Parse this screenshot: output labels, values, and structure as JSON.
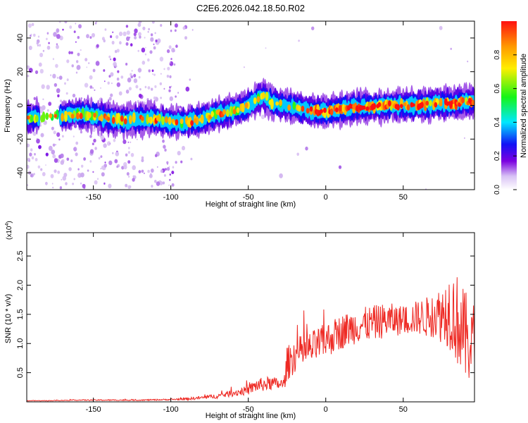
{
  "title": "C2E6.2026.042.18.50.R02",
  "colors": {
    "snr_line": "#ee2a24",
    "frame": "#000000",
    "background": "#ffffff"
  },
  "chart_data": [
    {
      "type": "heatmap",
      "xlabel": "Height of straight line (km)",
      "ylabel": "Frequency (Hz)",
      "xlim": [
        -193,
        96
      ],
      "ylim": [
        -50,
        50
      ],
      "xticks": [
        -150,
        -100,
        -50,
        0,
        50
      ],
      "xtick_labels": [
        "-150",
        "-100",
        "-50",
        "0",
        "50"
      ],
      "yticks": [
        -40,
        -20,
        0,
        20,
        40
      ],
      "ytick_labels": [
        "-40",
        "-20",
        "0",
        "20",
        "40"
      ],
      "colorbar": {
        "label": "Normalized spectral amplitude",
        "range": [
          0,
          1
        ],
        "ticks": [
          0.0,
          0.2,
          0.4,
          0.6,
          0.8
        ],
        "tick_labels": [
          "0.0",
          "0.2",
          "0.4",
          "0.6",
          "0.8"
        ],
        "colormap": [
          "#ffffff",
          "#c9a6ee",
          "#7a00e0",
          "#1111f5",
          "#00e8ff",
          "#16f516",
          "#ffee00",
          "#ff9900",
          "#ff1111"
        ]
      },
      "ridge_center_hz": {
        "x": [
          -190,
          -180,
          -170,
          -160,
          -150,
          -140,
          -130,
          -120,
          -110,
          -100,
          -90,
          -80,
          -70,
          -60,
          -50,
          -45,
          -40,
          -35,
          -30,
          -20,
          -10,
          0,
          10,
          20,
          30,
          40,
          50,
          60,
          70,
          80,
          90,
          95
        ],
        "y": [
          -7,
          -7,
          -6,
          -5,
          -6,
          -8,
          -9,
          -8,
          -8,
          -10,
          -10,
          -8,
          -5,
          -3,
          0,
          3,
          6,
          2,
          1,
          -1,
          -3,
          -4,
          -2,
          -1,
          -1,
          0,
          0,
          0,
          1,
          1,
          2,
          2
        ]
      }
    },
    {
      "type": "line",
      "xlabel": "Height of straight line (km)",
      "ylabel": "SNR (10 * v/v)",
      "y_scale_label": "(x10",
      "y_scale_exponent": "4",
      "y_scale_suffix": ")",
      "xlim": [
        -193,
        96
      ],
      "ylim": [
        0,
        2.9
      ],
      "xticks": [
        -150,
        -100,
        -50,
        0,
        50
      ],
      "xtick_labels": [
        "-150",
        "-100",
        "-50",
        "0",
        "50"
      ],
      "yticks": [
        0.5,
        1.0,
        1.5,
        2.0,
        2.5
      ],
      "ytick_labels": [
        "0.5",
        "1.0",
        "1.5",
        "2.0",
        "2.5"
      ],
      "series": [
        {
          "name": "SNR",
          "x": [
            -193,
            -180,
            -160,
            -140,
            -120,
            -100,
            -90,
            -80,
            -70,
            -60,
            -50,
            -45,
            -40,
            -35,
            -30,
            -27,
            -25,
            -20,
            -10,
            0,
            10,
            20,
            30,
            40,
            50,
            60,
            65,
            70,
            75,
            80,
            85,
            90,
            96
          ],
          "y": [
            0.02,
            0.02,
            0.03,
            0.03,
            0.03,
            0.04,
            0.05,
            0.07,
            0.1,
            0.15,
            0.2,
            0.28,
            0.3,
            0.32,
            0.3,
            0.3,
            0.65,
            0.8,
            0.9,
            1.05,
            1.2,
            1.3,
            1.35,
            1.4,
            1.4,
            1.45,
            1.45,
            1.5,
            1.5,
            1.6,
            1.4,
            1.1,
            1.0
          ],
          "noise": [
            0.005,
            0.005,
            0.008,
            0.01,
            0.01,
            0.012,
            0.02,
            0.03,
            0.04,
            0.06,
            0.08,
            0.12,
            0.12,
            0.12,
            0.1,
            0.1,
            0.3,
            0.3,
            0.3,
            0.3,
            0.3,
            0.3,
            0.3,
            0.3,
            0.25,
            0.3,
            0.35,
            0.4,
            0.5,
            0.7,
            0.8,
            0.8,
            0.7
          ]
        }
      ]
    }
  ]
}
